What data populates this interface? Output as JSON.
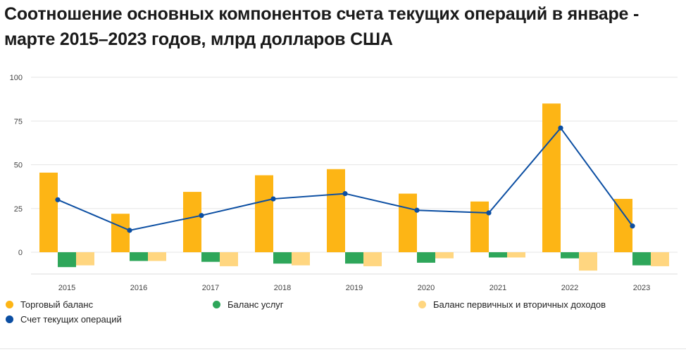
{
  "title": "Соотношение основных компонентов счета текущих операций в январе - марте 2015–2023 годов, млрд долларов США",
  "chart_data": {
    "type": "bar",
    "title": "Соотношение основных компонентов счета текущих операций в январе - марте 2015–2023 годов, млрд долларов США",
    "xlabel": "",
    "ylabel": "",
    "categories": [
      "2015",
      "2016",
      "2017",
      "2018",
      "2019",
      "2020",
      "2021",
      "2022",
      "2023"
    ],
    "ylim": [
      -12,
      100
    ],
    "yticks": [
      0,
      25,
      50,
      75,
      100
    ],
    "grid": true,
    "legend_position": "bottom",
    "series": [
      {
        "name": "Торговый баланс",
        "type": "bar",
        "color": "#FDB515",
        "values": [
          45.5,
          22,
          34.5,
          44,
          47.5,
          33.5,
          29,
          85,
          30.5
        ]
      },
      {
        "name": "Баланс услуг",
        "type": "bar",
        "color": "#2EA65A",
        "values": [
          -8.5,
          -5,
          -5.5,
          -6.5,
          -6.5,
          -6,
          -3,
          -3.5,
          -7.5
        ]
      },
      {
        "name": "Баланс первичных и вторичных доходов",
        "type": "bar",
        "color": "#FFD680",
        "values": [
          -7.5,
          -5,
          -8,
          -7.5,
          -8,
          -3.5,
          -3,
          -10.5,
          -8
        ]
      },
      {
        "name": "Счет текущих операций",
        "type": "line",
        "color": "#0B4EA2",
        "values": [
          30,
          12.5,
          21,
          30.5,
          33.5,
          24,
          22.5,
          71,
          15
        ]
      }
    ]
  }
}
